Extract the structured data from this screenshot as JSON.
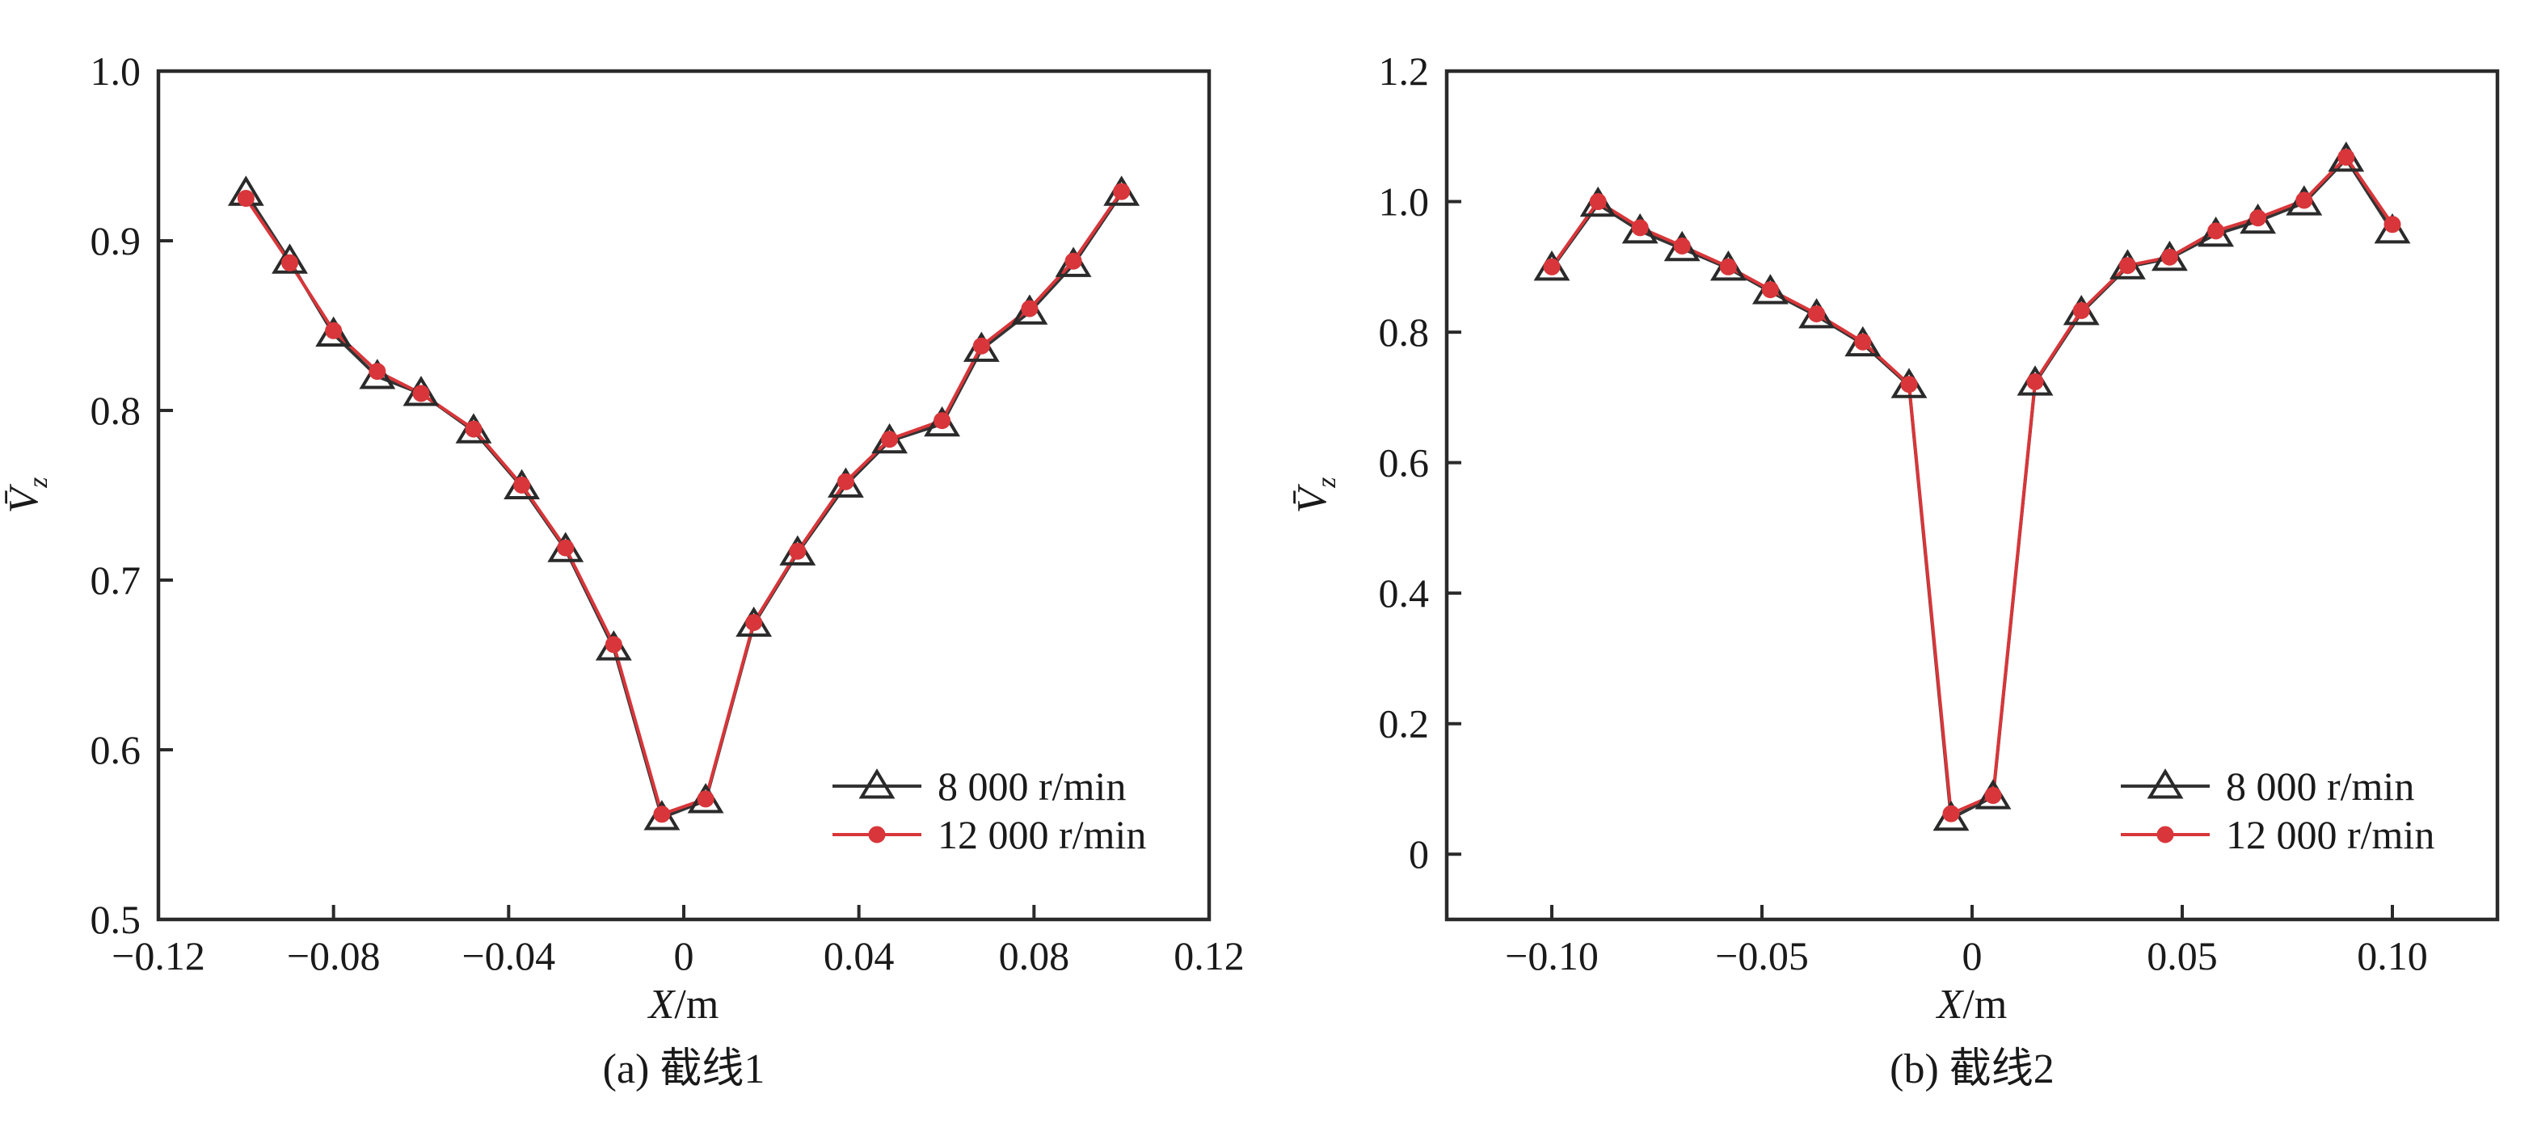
{
  "chart_data": [
    {
      "type": "line",
      "caption": "(a) 截线1",
      "xlabel": "X/m",
      "ylabel": "V̄z",
      "xlim": [
        -0.12,
        0.12
      ],
      "ylim": [
        0.5,
        1.0
      ],
      "xticks": [
        -0.12,
        -0.08,
        -0.04,
        0,
        0.04,
        0.08,
        0.12
      ],
      "xtick_labels": [
        "−0.12",
        "−0.08",
        "−0.04",
        "0",
        "0.04",
        "0.08",
        "0.12"
      ],
      "yticks": [
        0.5,
        0.6,
        0.7,
        0.8,
        0.9,
        1.0
      ],
      "ytick_labels": [
        "0.5",
        "0.6",
        "0.7",
        "0.8",
        "0.9",
        "1.0"
      ],
      "legend_position": "bottom-right",
      "x": [
        -0.1,
        -0.09,
        -0.08,
        -0.07,
        -0.06,
        -0.048,
        -0.037,
        -0.027,
        -0.016,
        -0.005,
        0.005,
        0.016,
        0.026,
        0.037,
        0.047,
        0.059,
        0.068,
        0.079,
        0.089,
        0.1
      ],
      "series": [
        {
          "name": "8 000 r/min",
          "marker": "triangle",
          "color": "#333333",
          "values": [
            0.928,
            0.888,
            0.845,
            0.82,
            0.81,
            0.788,
            0.755,
            0.718,
            0.66,
            0.56,
            0.57,
            0.674,
            0.716,
            0.756,
            0.782,
            0.792,
            0.836,
            0.858,
            0.886,
            0.928
          ]
        },
        {
          "name": "12 000 r/min",
          "marker": "circle",
          "color": "#d8363a",
          "values": [
            0.925,
            0.887,
            0.847,
            0.823,
            0.81,
            0.789,
            0.756,
            0.719,
            0.662,
            0.562,
            0.571,
            0.675,
            0.717,
            0.758,
            0.783,
            0.794,
            0.838,
            0.86,
            0.888,
            0.929
          ]
        }
      ]
    },
    {
      "type": "line",
      "caption": "(b) 截线2",
      "xlabel": "X/m",
      "ylabel": "V̄z",
      "xlim": [
        -0.125,
        0.125
      ],
      "ylim": [
        -0.1,
        1.2
      ],
      "xticks": [
        -0.1,
        -0.05,
        0,
        0.05,
        0.1
      ],
      "xtick_labels": [
        "−0.10",
        "−0.05",
        "0",
        "0.05",
        "0.10"
      ],
      "yticks": [
        0,
        0.2,
        0.4,
        0.6,
        0.8,
        1.0,
        1.2
      ],
      "ytick_labels": [
        "0",
        "0.2",
        "0.4",
        "0.6",
        "0.8",
        "1.0",
        "1.2"
      ],
      "legend_position": "bottom-right",
      "x": [
        -0.1,
        -0.089,
        -0.079,
        -0.069,
        -0.058,
        -0.048,
        -0.037,
        -0.026,
        -0.015,
        -0.005,
        0.005,
        0.015,
        0.026,
        0.037,
        0.047,
        0.058,
        0.068,
        0.079,
        0.089,
        0.1
      ],
      "series": [
        {
          "name": "8 000 r/min",
          "marker": "triangle",
          "color": "#333333",
          "values": [
            0.898,
            0.996,
            0.955,
            0.928,
            0.898,
            0.862,
            0.825,
            0.782,
            0.718,
            0.055,
            0.088,
            0.722,
            0.83,
            0.9,
            0.913,
            0.95,
            0.97,
            0.998,
            1.065,
            0.955
          ]
        },
        {
          "name": "12 000 r/min",
          "marker": "circle",
          "color": "#d8363a",
          "values": [
            0.9,
            1.0,
            0.96,
            0.932,
            0.9,
            0.865,
            0.828,
            0.785,
            0.72,
            0.062,
            0.09,
            0.724,
            0.833,
            0.902,
            0.915,
            0.955,
            0.975,
            1.002,
            1.068,
            0.965
          ]
        }
      ]
    }
  ]
}
